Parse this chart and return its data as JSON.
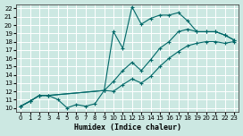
{
  "xlabel": "Humidex (Indice chaleur)",
  "bg_color": "#cce8e2",
  "grid_color": "#ffffff",
  "line_color": "#006868",
  "xlim": [
    -0.5,
    23.5
  ],
  "ylim": [
    9.5,
    22.5
  ],
  "xticks": [
    0,
    1,
    2,
    3,
    4,
    5,
    6,
    7,
    8,
    9,
    10,
    11,
    12,
    13,
    14,
    15,
    16,
    17,
    18,
    19,
    20,
    21,
    22,
    23
  ],
  "yticks": [
    10,
    11,
    12,
    13,
    14,
    15,
    16,
    17,
    18,
    19,
    20,
    21,
    22
  ],
  "line1_x": [
    0,
    1,
    2,
    3,
    4,
    5,
    6,
    7,
    8,
    9,
    10,
    11,
    12,
    13,
    14,
    15,
    16,
    17,
    18,
    19,
    20,
    21,
    22,
    23
  ],
  "line1_y": [
    10.2,
    10.8,
    11.5,
    11.5,
    11.0,
    10.0,
    10.4,
    10.2,
    10.5,
    12.1,
    19.2,
    17.2,
    22.2,
    20.1,
    20.8,
    21.2,
    21.2,
    21.5,
    20.5,
    19.2,
    19.2,
    19.2,
    18.8,
    18.2
  ],
  "line2_x": [
    0,
    1,
    2,
    3,
    9,
    10,
    11,
    12,
    13,
    14,
    15,
    16,
    17,
    18,
    19,
    20,
    21,
    22,
    23
  ],
  "line2_y": [
    10.2,
    10.8,
    11.5,
    11.5,
    12.1,
    13.2,
    14.5,
    15.5,
    14.5,
    15.8,
    17.2,
    18.0,
    19.2,
    19.5,
    19.2,
    19.2,
    19.2,
    18.8,
    18.2
  ],
  "line3_x": [
    0,
    1,
    2,
    3,
    9,
    10,
    11,
    12,
    13,
    14,
    15,
    16,
    17,
    18,
    19,
    20,
    21,
    22,
    23
  ],
  "line3_y": [
    10.2,
    10.8,
    11.5,
    11.5,
    12.1,
    12.0,
    12.8,
    13.5,
    13.0,
    13.8,
    15.0,
    16.0,
    16.8,
    17.5,
    17.8,
    18.0,
    18.0,
    17.8,
    18.0
  ]
}
